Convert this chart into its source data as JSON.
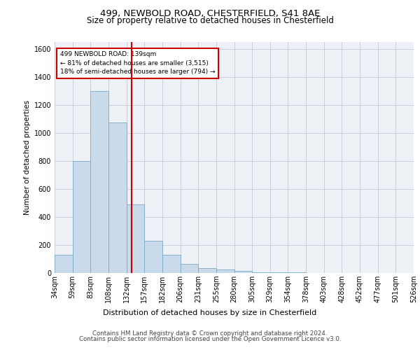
{
  "title1": "499, NEWBOLD ROAD, CHESTERFIELD, S41 8AE",
  "title2": "Size of property relative to detached houses in Chesterfield",
  "xlabel": "Distribution of detached houses by size in Chesterfield",
  "ylabel": "Number of detached properties",
  "footer1": "Contains HM Land Registry data © Crown copyright and database right 2024.",
  "footer2": "Contains public sector information licensed under the Open Government Licence v3.0.",
  "annotation_line1": "499 NEWBOLD ROAD: 139sqm",
  "annotation_line2": "← 81% of detached houses are smaller (3,515)",
  "annotation_line3": "18% of semi-detached houses are larger (794) →",
  "bar_values": [
    130,
    800,
    1300,
    1075,
    490,
    230,
    130,
    65,
    35,
    25,
    15,
    5,
    5,
    5,
    0,
    0,
    0,
    0,
    0,
    0
  ],
  "bin_labels": [
    "34sqm",
    "59sqm",
    "83sqm",
    "108sqm",
    "132sqm",
    "157sqm",
    "182sqm",
    "206sqm",
    "231sqm",
    "255sqm",
    "280sqm",
    "305sqm",
    "329sqm",
    "354sqm",
    "378sqm",
    "403sqm",
    "428sqm",
    "452sqm",
    "477sqm",
    "501sqm",
    "526sqm"
  ],
  "bar_color": "#c9daea",
  "bar_edge_color": "#7aaac8",
  "vline_color": "#cc0000",
  "annotation_box_color": "#cc0000",
  "ylim": [
    0,
    1650
  ],
  "yticks": [
    0,
    200,
    400,
    600,
    800,
    1000,
    1200,
    1400,
    1600
  ],
  "grid_color": "#c8cdd8",
  "background_color": "#eef2f7",
  "title1_fontsize": 9.5,
  "title2_fontsize": 8.5,
  "ylabel_fontsize": 7.5,
  "xlabel_fontsize": 8.0,
  "tick_fontsize": 7.0,
  "footer_fontsize": 6.2
}
